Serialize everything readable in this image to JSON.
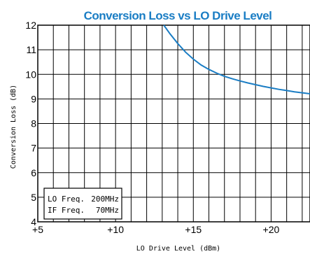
{
  "chart_data": {
    "type": "line",
    "title": "Conversion Loss vs LO Drive Level",
    "xlabel": "LO Drive Level (dBm)",
    "ylabel": "Conversion Loss (dB)",
    "xlim": [
      5,
      22.5
    ],
    "ylim": [
      4,
      12
    ],
    "x_grid_step": 1,
    "y_grid_step": 1,
    "grid": true,
    "x_ticks": [
      {
        "value": 5,
        "label": "+5"
      },
      {
        "value": 10,
        "label": "+10"
      },
      {
        "value": 15,
        "label": "+15"
      },
      {
        "value": 20,
        "label": "+20"
      }
    ],
    "y_ticks": [
      {
        "value": 4,
        "label": "4"
      },
      {
        "value": 5,
        "label": "5"
      },
      {
        "value": 6,
        "label": "6"
      },
      {
        "value": 7,
        "label": "7"
      },
      {
        "value": 8,
        "label": "8"
      },
      {
        "value": 9,
        "label": "9"
      },
      {
        "value": 10,
        "label": "10"
      },
      {
        "value": 11,
        "label": "11"
      },
      {
        "value": 12,
        "label": "12"
      }
    ],
    "series": [
      {
        "color": "#1a7dc4",
        "x": [
          13.1,
          13.5,
          14.0,
          14.5,
          15.0,
          15.5,
          16.0,
          16.5,
          17.0,
          17.5,
          18.0,
          18.5,
          19.0,
          19.5,
          20.0,
          20.5,
          21.0,
          21.5,
          22.0,
          22.5
        ],
        "y": [
          12.0,
          11.65,
          11.25,
          10.9,
          10.62,
          10.38,
          10.2,
          10.05,
          9.92,
          9.82,
          9.73,
          9.65,
          9.58,
          9.51,
          9.45,
          9.39,
          9.34,
          9.29,
          9.25,
          9.21
        ]
      }
    ],
    "annotations": {
      "legend_lines": [
        {
          "label": "LO Freq.",
          "value": "200MHz"
        },
        {
          "label": "IF Freq.",
          "value": "70MHz"
        }
      ],
      "placement": "bottom-left"
    },
    "title_color": "#1a7dc4"
  }
}
